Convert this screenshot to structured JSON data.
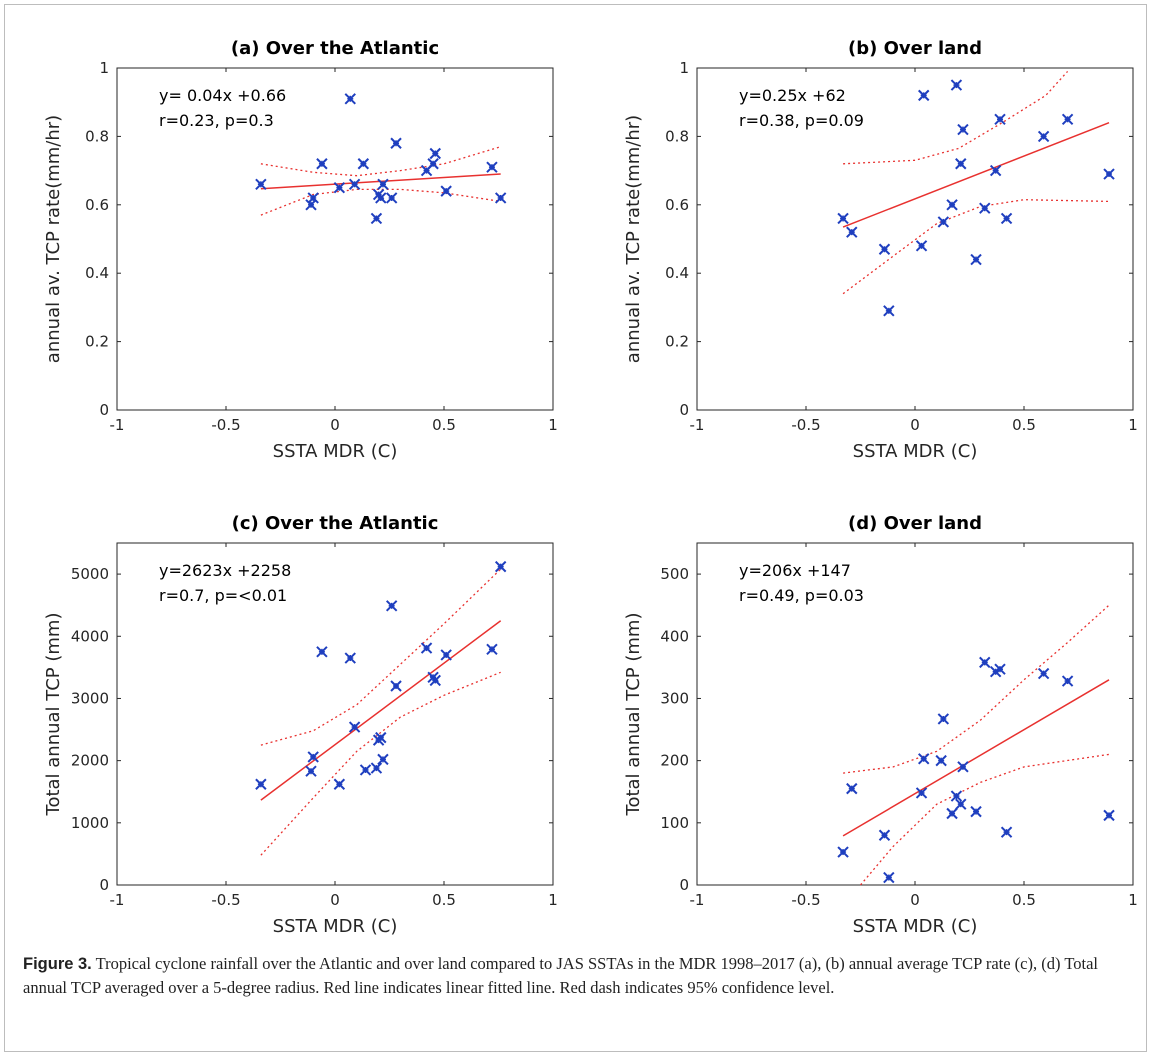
{
  "figure": {
    "caption_label": "Figure 3.",
    "caption_text": " Tropical cyclone rainfall over the Atlantic and over land compared to JAS SSTAs in the MDR 1998–2017 (a), (b) annual average TCP rate (c), (d) Total annual TCP averaged over a 5-degree radius. Red line indicates linear fitted line. Red dash indicates 95% confidence level."
  },
  "colors": {
    "marker": "#1f3fbf",
    "fit_line": "#e8312f",
    "ci_line": "#e8312f"
  },
  "chart_data": [
    {
      "type": "scatter",
      "title": "(a) Over the Atlantic",
      "xlabel": "SSTA MDR (C)",
      "ylabel": "annual av. TCP rate(mm/hr)",
      "xlim": [
        -1,
        1
      ],
      "ylim": [
        0,
        1
      ],
      "xticks": [
        "-1",
        "-0.5",
        "0",
        "0.5",
        "1"
      ],
      "yticks": [
        "0",
        "0.2",
        "0.4",
        "0.6",
        "0.8",
        "1"
      ],
      "annotations": [
        "y= 0.04x +0.66",
        "r=0.23, p=0.3"
      ],
      "points": [
        [
          -0.34,
          0.66
        ],
        [
          -0.11,
          0.6
        ],
        [
          -0.1,
          0.62
        ],
        [
          -0.06,
          0.72
        ],
        [
          0.02,
          0.65
        ],
        [
          0.07,
          0.91
        ],
        [
          0.09,
          0.66
        ],
        [
          0.13,
          0.72
        ],
        [
          0.19,
          0.56
        ],
        [
          0.2,
          0.63
        ],
        [
          0.21,
          0.62
        ],
        [
          0.22,
          0.66
        ],
        [
          0.26,
          0.62
        ],
        [
          0.28,
          0.78
        ],
        [
          0.42,
          0.7
        ],
        [
          0.45,
          0.72
        ],
        [
          0.46,
          0.75
        ],
        [
          0.51,
          0.64
        ],
        [
          0.72,
          0.71
        ],
        [
          0.76,
          0.62
        ]
      ],
      "fit": [
        [
          -0.34,
          0.647
        ],
        [
          0.76,
          0.69
        ]
      ],
      "ci_upper": [
        [
          -0.34,
          0.72
        ],
        [
          -0.1,
          0.695
        ],
        [
          0.1,
          0.685
        ],
        [
          0.3,
          0.7
        ],
        [
          0.5,
          0.72
        ],
        [
          0.76,
          0.77
        ]
      ],
      "ci_lower": [
        [
          -0.34,
          0.57
        ],
        [
          -0.1,
          0.63
        ],
        [
          0.1,
          0.645
        ],
        [
          0.3,
          0.645
        ],
        [
          0.5,
          0.635
        ],
        [
          0.76,
          0.61
        ]
      ]
    },
    {
      "type": "scatter",
      "title": "(b) Over land",
      "xlabel": "SSTA MDR (C)",
      "ylabel": "annual av. TCP rate(mm/hr)",
      "xlim": [
        -1,
        1
      ],
      "ylim": [
        0,
        1
      ],
      "xticks": [
        "-1",
        "-0.5",
        "0",
        "0.5",
        "1"
      ],
      "yticks": [
        "0",
        "0.2",
        "0.4",
        "0.6",
        "0.8",
        "1"
      ],
      "annotations": [
        "y=0.25x +62",
        "r=0.38, p=0.09"
      ],
      "points": [
        [
          -0.33,
          0.56
        ],
        [
          -0.29,
          0.52
        ],
        [
          -0.14,
          0.47
        ],
        [
          -0.12,
          0.29
        ],
        [
          0.03,
          0.48
        ],
        [
          0.04,
          0.92
        ],
        [
          0.13,
          0.55
        ],
        [
          0.17,
          0.6
        ],
        [
          0.19,
          0.95
        ],
        [
          0.21,
          0.72
        ],
        [
          0.22,
          0.82
        ],
        [
          0.28,
          0.44
        ],
        [
          0.32,
          0.59
        ],
        [
          0.37,
          0.7
        ],
        [
          0.39,
          0.85
        ],
        [
          0.42,
          0.56
        ],
        [
          0.59,
          0.8
        ],
        [
          0.7,
          0.85
        ],
        [
          0.89,
          0.69
        ]
      ],
      "fit": [
        [
          -0.33,
          0.535
        ],
        [
          0.89,
          0.84
        ]
      ],
      "ci_upper": [
        [
          -0.33,
          0.72
        ],
        [
          0.0,
          0.73
        ],
        [
          0.2,
          0.765
        ],
        [
          0.4,
          0.84
        ],
        [
          0.6,
          0.92
        ],
        [
          0.7,
          0.99
        ]
      ],
      "ci_lower": [
        [
          -0.33,
          0.34
        ],
        [
          -0.1,
          0.45
        ],
        [
          0.1,
          0.545
        ],
        [
          0.3,
          0.595
        ],
        [
          0.5,
          0.615
        ],
        [
          0.89,
          0.61
        ]
      ]
    },
    {
      "type": "scatter",
      "title": "(c) Over the Atlantic",
      "xlabel": "SSTA MDR (C)",
      "ylabel": "Total annual TCP (mm)",
      "xlim": [
        -1,
        1
      ],
      "ylim": [
        0,
        5500
      ],
      "xticks": [
        "-1",
        "-0.5",
        "0",
        "0.5",
        "1"
      ],
      "yticks": [
        "0",
        "1000",
        "2000",
        "3000",
        "4000",
        "5000"
      ],
      "annotations": [
        "y=2623x +2258",
        "r=0.7, p=<0.01"
      ],
      "points": [
        [
          -0.34,
          1620
        ],
        [
          -0.11,
          1830
        ],
        [
          -0.1,
          2060
        ],
        [
          -0.06,
          3750
        ],
        [
          0.02,
          1620
        ],
        [
          0.07,
          3650
        ],
        [
          0.09,
          2540
        ],
        [
          0.14,
          1850
        ],
        [
          0.19,
          1880
        ],
        [
          0.2,
          2330
        ],
        [
          0.21,
          2370
        ],
        [
          0.22,
          2020
        ],
        [
          0.26,
          4490
        ],
        [
          0.28,
          3200
        ],
        [
          0.42,
          3810
        ],
        [
          0.45,
          3340
        ],
        [
          0.46,
          3290
        ],
        [
          0.51,
          3700
        ],
        [
          0.72,
          3790
        ],
        [
          0.76,
          5120
        ]
      ],
      "fit": [
        [
          -0.34,
          1365
        ],
        [
          0.76,
          4250
        ]
      ],
      "ci_upper": [
        [
          -0.34,
          2250
        ],
        [
          -0.1,
          2480
        ],
        [
          0.1,
          2900
        ],
        [
          0.3,
          3550
        ],
        [
          0.5,
          4200
        ],
        [
          0.76,
          5080
        ]
      ],
      "ci_lower": [
        [
          -0.34,
          480
        ],
        [
          -0.1,
          1400
        ],
        [
          0.1,
          2150
        ],
        [
          0.3,
          2700
        ],
        [
          0.5,
          3050
        ],
        [
          0.76,
          3420
        ]
      ]
    },
    {
      "type": "scatter",
      "title": "(d) Over land",
      "xlabel": "SSTA MDR (C)",
      "ylabel": "Total annual TCP (mm)",
      "xlim": [
        -1,
        1
      ],
      "ylim": [
        0,
        550
      ],
      "xticks": [
        "-1",
        "-0.5",
        "0",
        "0.5",
        "1"
      ],
      "yticks": [
        "0",
        "100",
        "200",
        "300",
        "400",
        "500"
      ],
      "annotations": [
        "y=206x +147",
        "r=0.49, p=0.03"
      ],
      "points": [
        [
          -0.33,
          53
        ],
        [
          -0.29,
          155
        ],
        [
          -0.14,
          80
        ],
        [
          -0.12,
          12
        ],
        [
          0.03,
          148
        ],
        [
          0.04,
          203
        ],
        [
          0.12,
          200
        ],
        [
          0.13,
          267
        ],
        [
          0.17,
          115
        ],
        [
          0.19,
          143
        ],
        [
          0.21,
          130
        ],
        [
          0.22,
          190
        ],
        [
          0.28,
          118
        ],
        [
          0.32,
          358
        ],
        [
          0.37,
          343
        ],
        [
          0.39,
          347
        ],
        [
          0.42,
          85
        ],
        [
          0.59,
          340
        ],
        [
          0.7,
          328
        ],
        [
          0.89,
          112
        ]
      ],
      "fit": [
        [
          -0.33,
          79
        ],
        [
          0.89,
          330
        ]
      ],
      "ci_upper": [
        [
          -0.33,
          180
        ],
        [
          -0.1,
          190
        ],
        [
          0.1,
          215
        ],
        [
          0.3,
          265
        ],
        [
          0.5,
          330
        ],
        [
          0.7,
          390
        ],
        [
          0.89,
          450
        ]
      ],
      "ci_lower": [
        [
          -0.25,
          0
        ],
        [
          -0.1,
          62
        ],
        [
          0.1,
          130
        ],
        [
          0.3,
          165
        ],
        [
          0.5,
          190
        ],
        [
          0.89,
          210
        ]
      ]
    }
  ]
}
